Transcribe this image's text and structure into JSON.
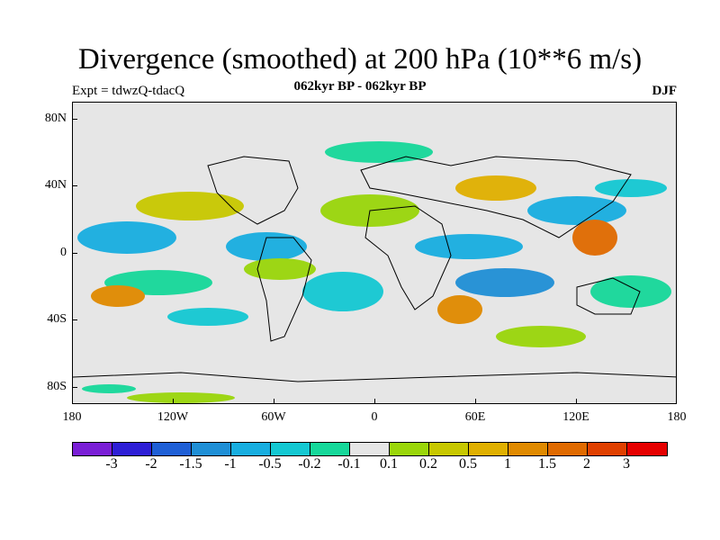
{
  "title": "Divergence (smoothed) at 200 hPa (10**6 m/s)",
  "subtitle_left": "Expt = tdwzQ-tdacQ",
  "subtitle_center": "062kyr BP - 062kyr BP",
  "subtitle_right": "DJF",
  "y_axis_labels": [
    "80N",
    "40N",
    "0",
    "40S",
    "80S"
  ],
  "x_axis_labels": [
    "180",
    "120W",
    "60W",
    "0",
    "60E",
    "120E",
    "180"
  ],
  "colorbar": {
    "colors": [
      "#7a1fd6",
      "#2e1fd6",
      "#1f5fd6",
      "#1f8fd6",
      "#18aee0",
      "#14c8d2",
      "#16d89a",
      "#e6e6e6",
      "#9ad60a",
      "#c8c800",
      "#e0b000",
      "#e08a00",
      "#e06a00",
      "#e04000",
      "#e60000"
    ],
    "labels": [
      "-3",
      "-2",
      "-1.5",
      "-1",
      "-0.5",
      "-0.2",
      "-0.1",
      "0.1",
      "0.2",
      "0.5",
      "1",
      "1.5",
      "2",
      "3"
    ]
  }
}
